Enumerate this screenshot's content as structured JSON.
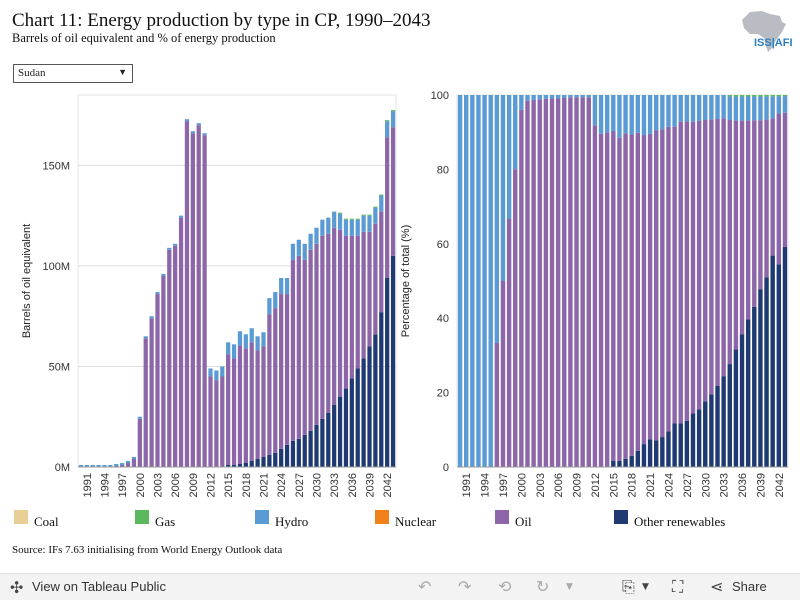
{
  "header": {
    "title": "Chart 11: Energy production by type in CP, 1990–2043",
    "subtitle": "Barrels of oil equivalent and % of energy production",
    "logo_text": "ISS|AFI"
  },
  "filter": {
    "selected": "Sudan"
  },
  "source": "Source: IFs 7.63 initialising from World Energy Outlook data",
  "footer": {
    "view_label": "View on Tableau Public",
    "share_label": "Share"
  },
  "colors": {
    "Coal": "#e8cf95",
    "Gas": "#5cb85c",
    "Hydro": "#5b9bd5",
    "Nuclear": "#f0801a",
    "Oil": "#8c66a8",
    "Other renewables": "#1f3a73"
  },
  "chart_data": [
    {
      "type": "bar",
      "stacked": true,
      "ylabel": "Barrels of oil equivalent",
      "ylim": [
        0,
        185000000
      ],
      "yticks": [
        0,
        50000000,
        100000000,
        150000000
      ],
      "yticklabels": [
        "0M",
        "50M",
        "100M",
        "150M"
      ],
      "x": [
        1990,
        1991,
        1992,
        1993,
        1994,
        1995,
        1996,
        1997,
        1998,
        1999,
        2000,
        2001,
        2002,
        2003,
        2004,
        2005,
        2006,
        2007,
        2008,
        2009,
        2010,
        2011,
        2012,
        2013,
        2014,
        2015,
        2016,
        2017,
        2018,
        2019,
        2020,
        2021,
        2022,
        2023,
        2024,
        2025,
        2026,
        2027,
        2028,
        2029,
        2030,
        2031,
        2032,
        2033,
        2034,
        2035,
        2036,
        2037,
        2038,
        2039,
        2040,
        2041,
        2042,
        2043
      ],
      "xticklabels": [
        "1991",
        "1994",
        "1997",
        "2000",
        "2003",
        "2006",
        "2009",
        "2012",
        "2015",
        "2018",
        "2021",
        "2024",
        "2027",
        "2030",
        "2033",
        "2036",
        "2039",
        "2042"
      ],
      "grid": true,
      "series": [
        {
          "name": "Other renewables",
          "values": [
            0,
            0,
            0,
            0,
            0,
            0,
            0,
            0,
            0,
            0,
            0,
            0,
            0,
            0,
            0,
            0,
            0,
            0,
            0,
            0,
            0,
            0,
            0,
            0,
            0,
            1,
            1,
            1.5,
            2,
            3,
            4,
            5,
            6,
            7,
            9,
            11,
            13,
            14,
            16,
            18,
            21,
            24,
            27,
            31,
            35,
            39,
            44,
            49,
            54,
            60,
            66,
            77,
            94,
            105
          ]
        },
        {
          "name": "Oil",
          "values": [
            0,
            0,
            0,
            0,
            0,
            0,
            0.5,
            1,
            2,
            4,
            24,
            64,
            74,
            86,
            95,
            108,
            110,
            124,
            172,
            166,
            170,
            165,
            45,
            43,
            45,
            55,
            53,
            59,
            57,
            59,
            54,
            55,
            70,
            72,
            77,
            75,
            90,
            91,
            87,
            90,
            90,
            91,
            89,
            88,
            83,
            76,
            71,
            66,
            63,
            57,
            55,
            50,
            70,
            64
          ]
        },
        {
          "name": "Hydro",
          "values": [
            1,
            1,
            1,
            1,
            1,
            1,
            1,
            1,
            1,
            1,
            1,
            1,
            1,
            1,
            1,
            1,
            1,
            1,
            1,
            1,
            1,
            1,
            4,
            5,
            5,
            6,
            7,
            7,
            7,
            7,
            7,
            7,
            8,
            8,
            8,
            8,
            8,
            8,
            8,
            8,
            8,
            8,
            8,
            8,
            8,
            8,
            8,
            8,
            8,
            8,
            8,
            8,
            8,
            8
          ]
        },
        {
          "name": "Gas",
          "values": [
            0,
            0,
            0,
            0,
            0,
            0,
            0,
            0,
            0,
            0,
            0,
            0,
            0,
            0,
            0,
            0,
            0,
            0,
            0,
            0,
            0,
            0,
            0,
            0,
            0,
            0,
            0,
            0,
            0,
            0,
            0,
            0,
            0,
            0,
            0,
            0,
            0,
            0,
            0,
            0,
            0,
            0,
            0,
            0,
            0.5,
            0.5,
            0.5,
            0.5,
            0.5,
            0.5,
            0.5,
            0.5,
            0.5,
            0.5
          ]
        },
        {
          "name": "Coal",
          "values": [
            0,
            0,
            0,
            0,
            0,
            0,
            0,
            0,
            0,
            0,
            0,
            0,
            0,
            0,
            0,
            0,
            0,
            0,
            0,
            0,
            0,
            0,
            0,
            0,
            0,
            0,
            0,
            0,
            0,
            0,
            0,
            0,
            0,
            0,
            0,
            0,
            0,
            0,
            0,
            0,
            0,
            0,
            0,
            0,
            0,
            0,
            0,
            0,
            0,
            0,
            0,
            0,
            0,
            0
          ]
        },
        {
          "name": "Nuclear",
          "values": [
            0,
            0,
            0,
            0,
            0,
            0,
            0,
            0,
            0,
            0,
            0,
            0,
            0,
            0,
            0,
            0,
            0,
            0,
            0,
            0,
            0,
            0,
            0,
            0,
            0,
            0,
            0,
            0,
            0,
            0,
            0,
            0,
            0,
            0,
            0,
            0,
            0,
            0,
            0,
            0,
            0,
            0,
            0,
            0,
            0,
            0,
            0,
            0,
            0,
            0,
            0,
            0,
            0,
            0
          ]
        }
      ]
    },
    {
      "type": "bar",
      "stacked": true,
      "percent": true,
      "ylabel": "Percentage of total (%)",
      "ylim": [
        0,
        100
      ],
      "yticks": [
        0,
        20,
        40,
        60,
        80,
        100
      ],
      "yticklabels": [
        "0",
        "20",
        "40",
        "60",
        "80",
        "100"
      ],
      "xticklabels": [
        "1991",
        "1994",
        "1997",
        "2000",
        "2003",
        "2006",
        "2009",
        "2012",
        "2015",
        "2018",
        "2021",
        "2024",
        "2027",
        "2030",
        "2033",
        "2036",
        "2039",
        "2042"
      ],
      "grid": false
    }
  ]
}
